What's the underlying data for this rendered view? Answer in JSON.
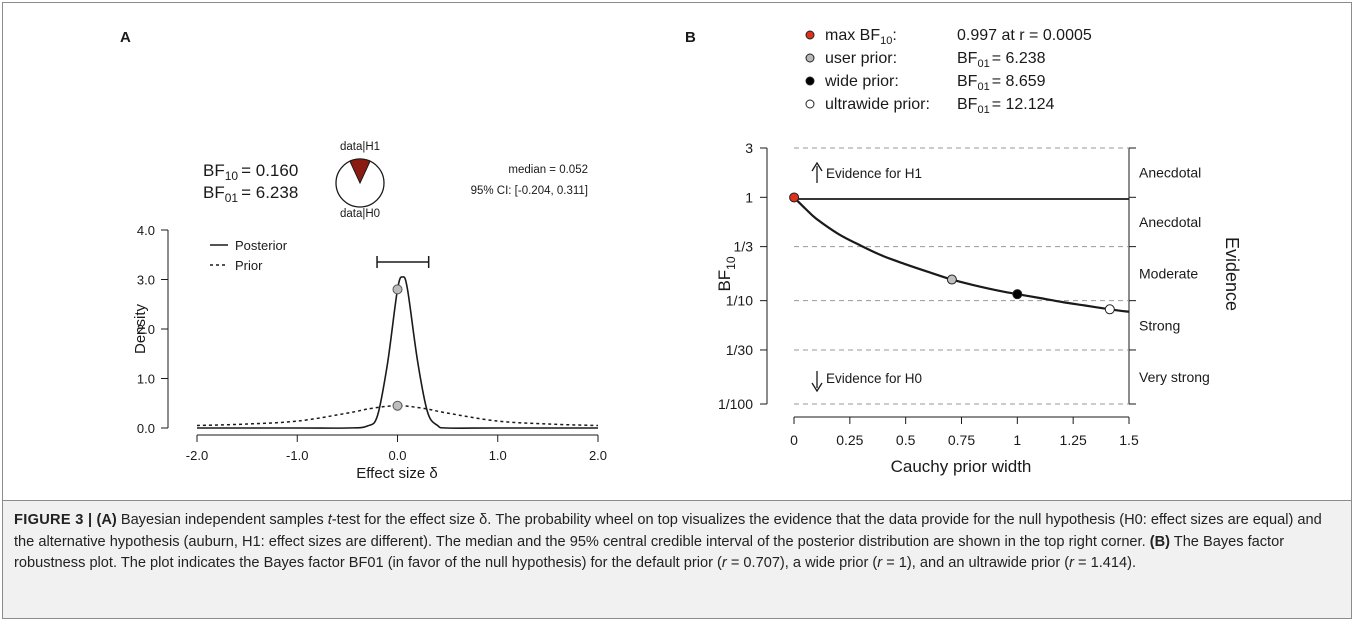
{
  "chart_data": [
    {
      "panel_label": "A",
      "type": "line",
      "xlabel": "Effect size δ",
      "ylabel": "Density",
      "xlim": [
        -2.0,
        2.0
      ],
      "ylim": [
        0.0,
        4.0
      ],
      "x_ticks": [
        "-2.0",
        "-1.0",
        "0.0",
        "1.0",
        "2.0"
      ],
      "y_ticks": [
        "0.0",
        "1.0",
        "2.0",
        "3.0",
        "4.0"
      ],
      "legend": [
        "Posterior",
        "Prior"
      ],
      "series": [
        {
          "name": "Posterior",
          "style": "solid",
          "x": [
            -2.0,
            -1.0,
            -0.5,
            -0.3,
            -0.2,
            -0.1,
            0.0,
            0.052,
            0.1,
            0.2,
            0.3,
            0.4,
            0.5,
            1.0,
            2.0
          ],
          "y": [
            0.0,
            0.0,
            0.0,
            0.04,
            0.25,
            1.3,
            2.8,
            3.05,
            2.8,
            1.35,
            0.32,
            0.05,
            0.0,
            0.0,
            0.0
          ]
        },
        {
          "name": "Prior",
          "style": "dashed",
          "x": [
            -2.0,
            -1.5,
            -1.0,
            -0.5,
            -0.25,
            0.0,
            0.25,
            0.5,
            1.0,
            1.5,
            2.0
          ],
          "y": [
            0.05,
            0.08,
            0.14,
            0.3,
            0.4,
            0.45,
            0.4,
            0.3,
            0.14,
            0.08,
            0.05
          ]
        }
      ],
      "points": [
        {
          "x": 0.0,
          "y": 2.8
        },
        {
          "x": 0.0,
          "y": 0.45
        }
      ],
      "credible_interval": [
        -0.204,
        0.311
      ],
      "bf_text": {
        "bf10_label": "BF",
        "bf10_sub": "10",
        "bf10_value": "= 0.160",
        "bf01_label": "BF",
        "bf01_sub": "01",
        "bf01_value": "= 6.238"
      },
      "wheel": {
        "top_label": "data|H1",
        "bottom_label": "data|H0",
        "h1_fraction": 0.138,
        "h1_color": "#8b1a10"
      },
      "stats_text": {
        "median": "median = 0.052",
        "ci": "95% CI: [-0.204, 0.311]"
      }
    },
    {
      "panel_label": "B",
      "type": "line",
      "xlabel": "Cauchy prior width",
      "ylabel": "BF",
      "ylabel_sub": "10",
      "right_label": "Evidence",
      "xlim": [
        0,
        1.5
      ],
      "y_scale": "log",
      "ylim": [
        0.01,
        3
      ],
      "x_ticks": [
        "0",
        "0.25",
        "0.5",
        "0.75",
        "1",
        "1.25",
        "1.5"
      ],
      "y_ticks": [
        {
          "label": "3",
          "value": 3
        },
        {
          "label": "1",
          "value": 1
        },
        {
          "label": "1/3",
          "value": 0.3333
        },
        {
          "label": "1/10",
          "value": 0.1
        },
        {
          "label": "1/30",
          "value": 0.03333
        },
        {
          "label": "1/100",
          "value": 0.01
        }
      ],
      "gridlines": [
        3,
        0.3333,
        0.1,
        0.03333,
        0.01
      ],
      "evidence_categories": [
        "Anecdotal",
        "Anecdotal",
        "Moderate",
        "Strong",
        "Very strong"
      ],
      "arrow_labels": {
        "up": "Evidence for H1",
        "down": "Evidence for H0"
      },
      "series": [
        {
          "name": "BF10",
          "x": [
            0.0,
            0.05,
            0.1,
            0.2,
            0.3,
            0.4,
            0.5,
            0.6,
            0.707,
            0.8,
            0.9,
            1.0,
            1.1,
            1.2,
            1.3,
            1.414,
            1.5
          ],
          "y": [
            0.997,
            0.78,
            0.62,
            0.44,
            0.34,
            0.27,
            0.225,
            0.19,
            0.16,
            0.142,
            0.127,
            0.1155,
            0.106,
            0.097,
            0.09,
            0.0825,
            0.078
          ]
        }
      ],
      "points": [
        {
          "name": "max",
          "x": 0.0005,
          "y": 0.997,
          "color": "#e0301e"
        },
        {
          "name": "user",
          "x": 0.707,
          "y": 0.16,
          "color": "#c0c0c0"
        },
        {
          "name": "wide",
          "x": 1.0,
          "y": 0.1155,
          "color": "#000000"
        },
        {
          "name": "ultrawide",
          "x": 1.414,
          "y": 0.0825,
          "color": "#ffffff"
        }
      ],
      "legend": [
        {
          "label": "max BF",
          "sub": "10",
          "suffix": ":",
          "value": "0.997 at r = 0.0005",
          "dot_color": "#e0301e"
        },
        {
          "label": "user prior:",
          "sub": "",
          "suffix": "",
          "value_label": "BF",
          "value_sub": "01",
          "value": "= 6.238",
          "dot_color": "#b8b8b8"
        },
        {
          "label": "wide prior:",
          "sub": "",
          "suffix": "",
          "value_label": "BF",
          "value_sub": "01",
          "value": "= 8.659",
          "dot_color": "#000000"
        },
        {
          "label": "ultrawide prior:",
          "sub": "",
          "suffix": "",
          "value_label": "BF",
          "value_sub": "01",
          "value": "= 12.124",
          "dot_color": "#ffffff"
        }
      ]
    }
  ],
  "caption": {
    "fig_label": "FIGURE 3 |",
    "part_a": "(A)",
    "text_a1": " Bayesian independent samples ",
    "text_a_t": "t",
    "text_a2": "-test for the effect size δ. The probability wheel on top visualizes the evidence that the data provide for the null hypothesis (H0: effect sizes are equal) and the alternative hypothesis (auburn, H1: effect sizes are different). The median and the 95% central credible interval of the posterior distribution are shown in the top right corner. ",
    "part_b": "(B)",
    "text_b1": " The Bayes factor robustness plot. The plot indicates the Bayes factor BF01 (in favor of the null hypothesis) for the default prior (",
    "r1": "r",
    "text_b2": " = 0.707), a wide prior (",
    "r2": "r",
    "text_b3": " = 1), and an ultrawide prior (",
    "r3": "r",
    "text_b4": " = 1.414)."
  }
}
